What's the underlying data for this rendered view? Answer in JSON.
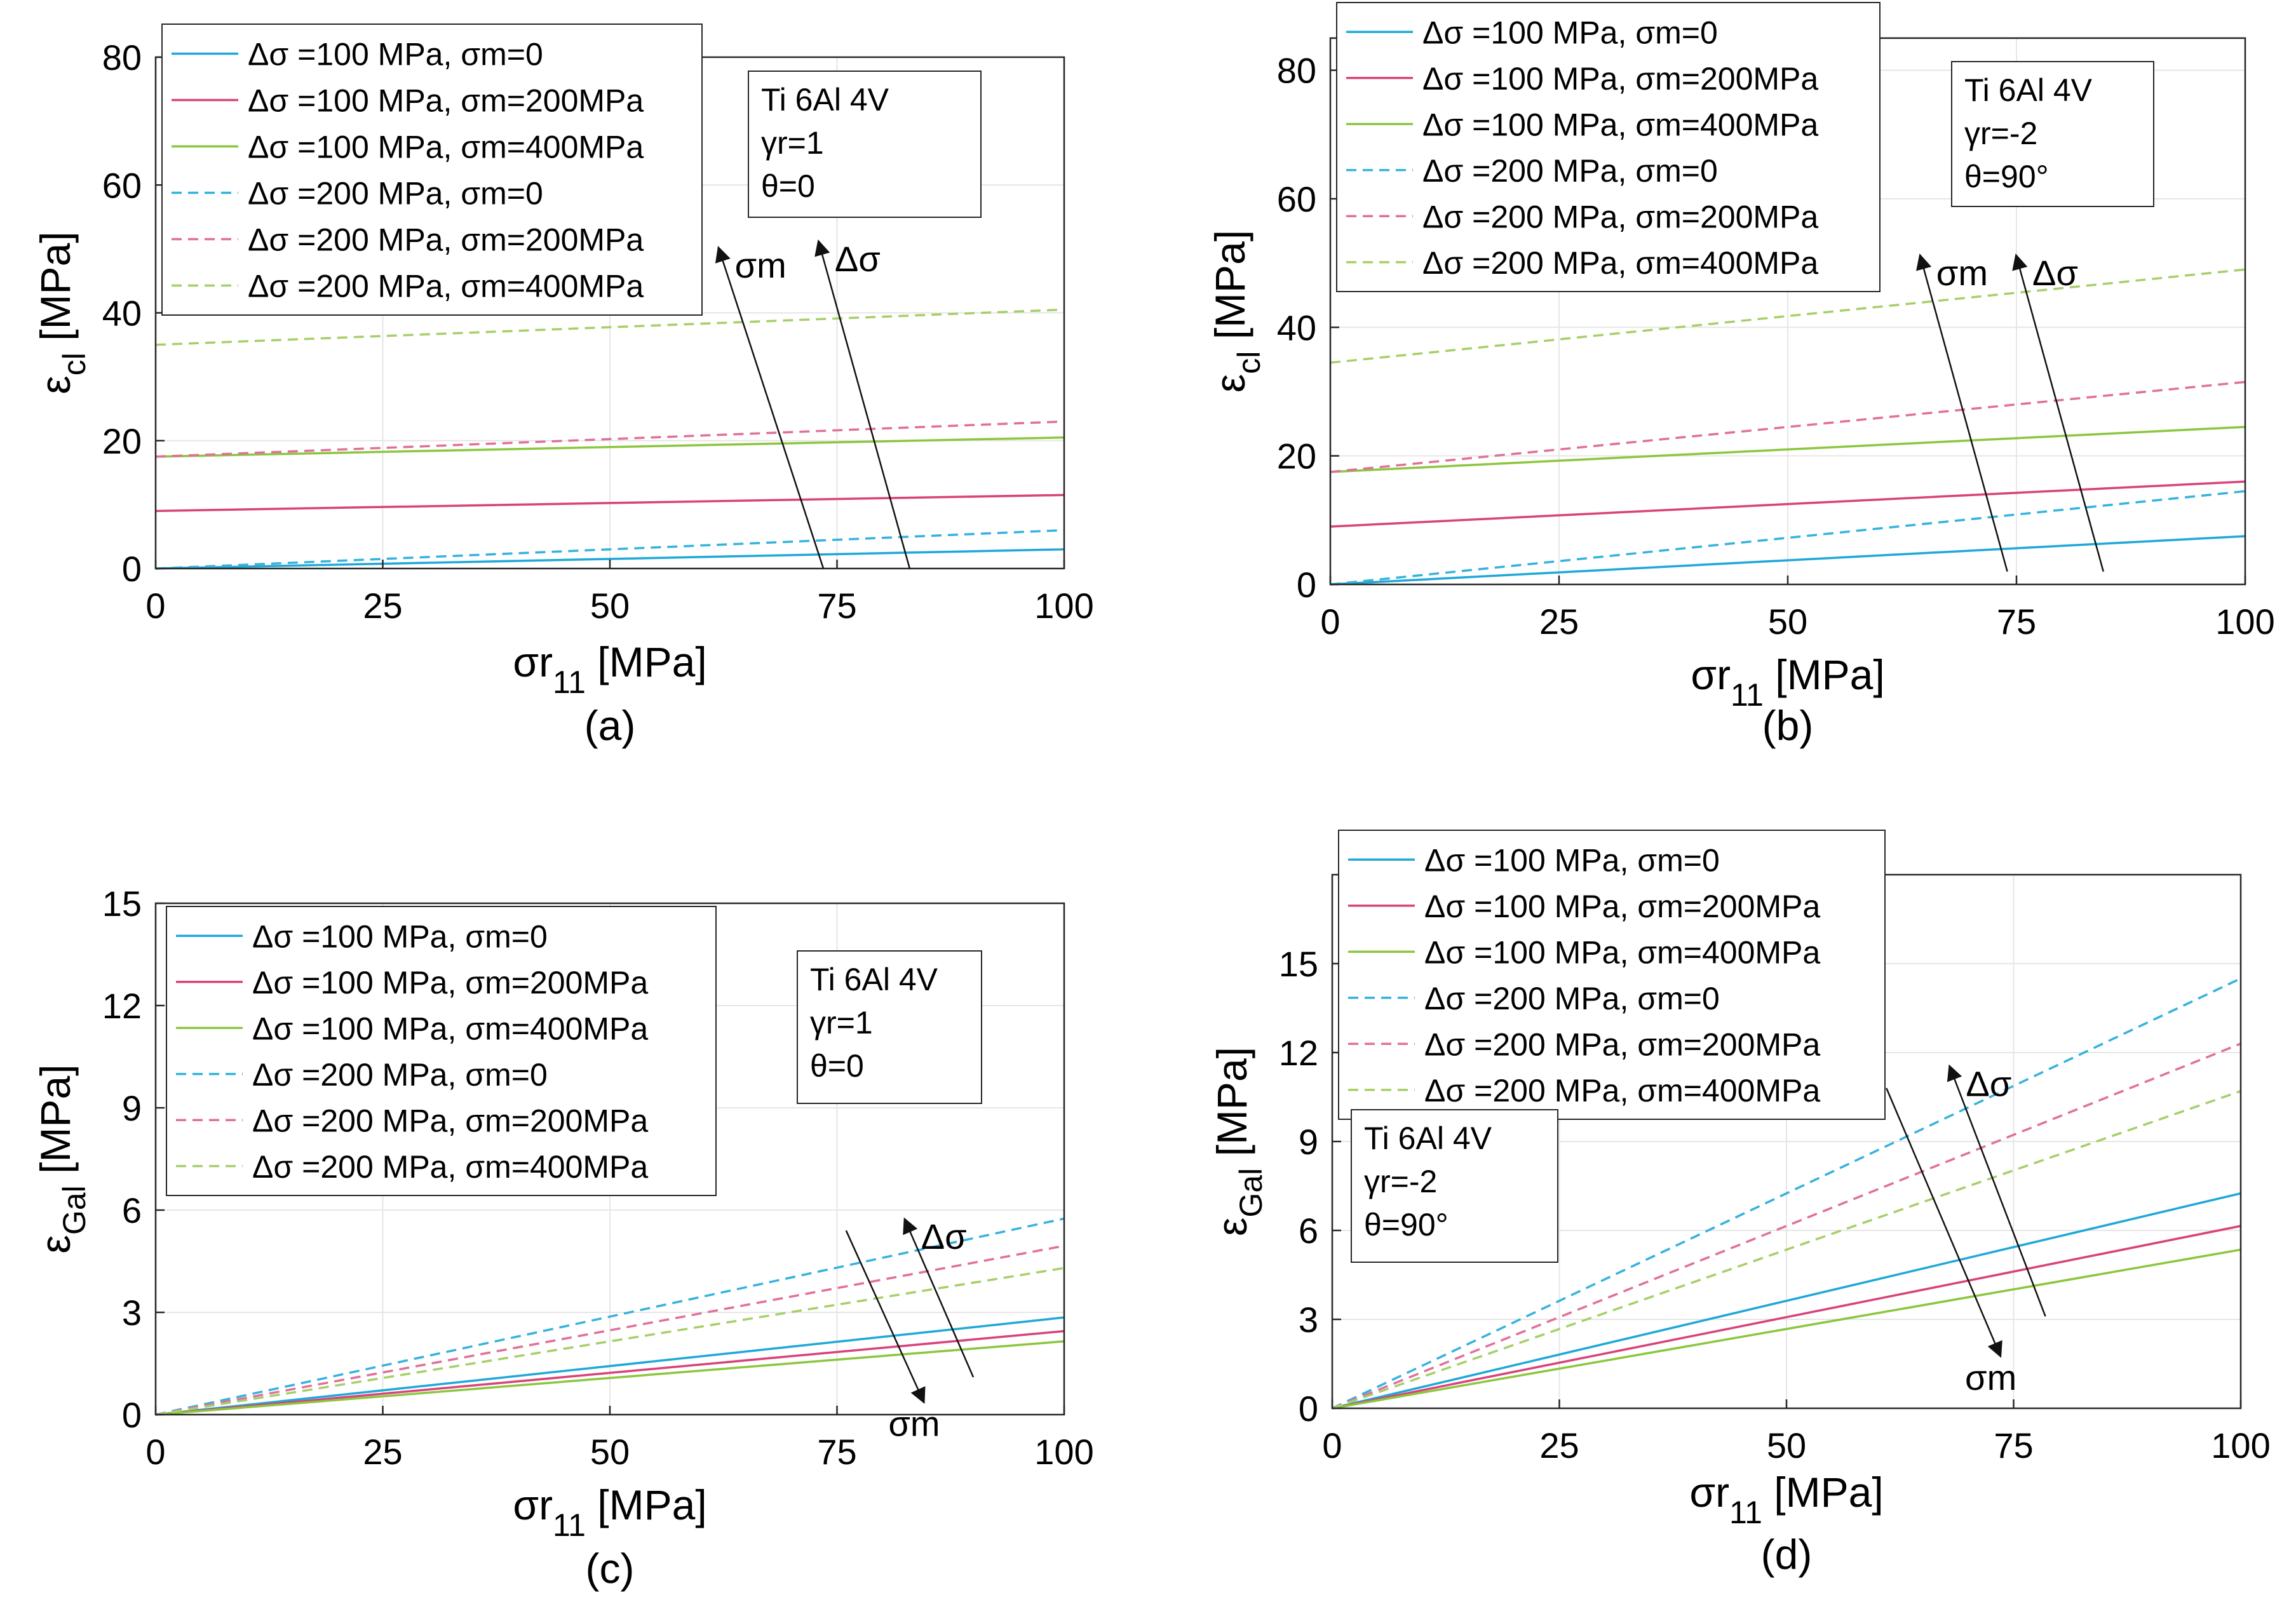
{
  "colors": {
    "blue": "#1fa8d8",
    "pink": "#d8437a",
    "green": "#8cc63e",
    "blue_dash": "#35b2de",
    "pink_dash": "#e0709a",
    "green_dash": "#a6cf6a",
    "axis": "#262626",
    "grid": "#e6e6e6"
  },
  "chart_data": [
    {
      "id": "a",
      "type": "line",
      "panel_label": "(a)",
      "xlabel": "σr11 [MPa]",
      "xlabel_main": "σr",
      "xlabel_sub": "11",
      "xlabel_unit": " [MPa]",
      "ylabel_main": "ε",
      "ylabel_sub": "cl",
      "ylabel_unit": " [MPa]",
      "xlim": [
        0,
        100
      ],
      "ylim": [
        0,
        80
      ],
      "xticks": [
        0,
        25,
        50,
        75,
        100
      ],
      "yticks": [
        0,
        20,
        40,
        60,
        80
      ],
      "x": [
        0,
        100
      ],
      "series": [
        {
          "name": "Δσ =100 MPa, σm=0",
          "color": "#1fa8d8",
          "dash": false,
          "values": [
            0,
            3
          ]
        },
        {
          "name": "Δσ =100 MPa, σm=200MPa",
          "color": "#d8437a",
          "dash": false,
          "values": [
            9,
            11.5
          ]
        },
        {
          "name": "Δσ =100 MPa, σm=400MPa",
          "color": "#8cc63e",
          "dash": false,
          "values": [
            17.5,
            20.5
          ]
        },
        {
          "name": "Δσ =200 MPa, σm=0",
          "color": "#35b2de",
          "dash": true,
          "values": [
            0,
            6
          ]
        },
        {
          "name": "Δσ =200 MPa, σm=200MPa",
          "color": "#e0709a",
          "dash": true,
          "values": [
            17.5,
            23
          ]
        },
        {
          "name": "Δσ =200 MPa, σm=400MPa",
          "color": "#a6cf6a",
          "dash": true,
          "values": [
            35,
            40.5
          ]
        }
      ],
      "legend_position": "top-left",
      "info_lines": [
        "Ti 6Al 4V",
        "γr=1",
        "θ=0"
      ],
      "info_position": "top-center",
      "arrows": [
        {
          "label": "σm",
          "from": [
            73.5,
            0
          ],
          "to": [
            62,
            50
          ]
        },
        {
          "label": "Δσ",
          "from": [
            83,
            0
          ],
          "to": [
            73,
            51
          ]
        }
      ]
    },
    {
      "id": "b",
      "type": "line",
      "panel_label": "(b)",
      "xlabel": "σr11 [MPa]",
      "xlabel_main": "σr",
      "xlabel_sub": "11",
      "xlabel_unit": " [MPa]",
      "ylabel_main": "ε",
      "ylabel_sub": "cl",
      "ylabel_unit": " [MPa]",
      "xlim": [
        0,
        100
      ],
      "ylim": [
        0,
        85
      ],
      "xticks": [
        0,
        25,
        50,
        75,
        100
      ],
      "yticks": [
        0,
        20,
        40,
        60,
        80
      ],
      "x": [
        0,
        100
      ],
      "series": [
        {
          "name": "Δσ =100 MPa, σm=0",
          "color": "#1fa8d8",
          "dash": false,
          "values": [
            0,
            7.5
          ]
        },
        {
          "name": "Δσ =100 MPa, σm=200MPa",
          "color": "#d8437a",
          "dash": false,
          "values": [
            9,
            16
          ]
        },
        {
          "name": "Δσ =100 MPa, σm=400MPa",
          "color": "#8cc63e",
          "dash": false,
          "values": [
            17.5,
            24.5
          ]
        },
        {
          "name": "Δσ =200 MPa, σm=0",
          "color": "#35b2de",
          "dash": true,
          "values": [
            0,
            14.5
          ]
        },
        {
          "name": "Δσ =200 MPa, σm=200MPa",
          "color": "#e0709a",
          "dash": true,
          "values": [
            17.5,
            31.5
          ]
        },
        {
          "name": "Δσ =200 MPa, σm=400MPa",
          "color": "#a6cf6a",
          "dash": true,
          "values": [
            34.5,
            49
          ]
        }
      ],
      "legend_position": "top-left",
      "info_lines": [
        "Ti 6Al 4V",
        "γr=-2",
        "θ=90°"
      ],
      "info_position": "top-right",
      "arrows": [
        {
          "label": "σm",
          "from": [
            74,
            2
          ],
          "to": [
            64.5,
            51
          ]
        },
        {
          "label": "Δσ",
          "from": [
            84.5,
            2
          ],
          "to": [
            75,
            51
          ]
        }
      ]
    },
    {
      "id": "c",
      "type": "line",
      "panel_label": "(c)",
      "xlabel": "σr11 [MPa]",
      "xlabel_main": "σr",
      "xlabel_sub": "11",
      "xlabel_unit": " [MPa]",
      "ylabel_main": "ε",
      "ylabel_sub": "Gal",
      "ylabel_unit": " [MPa]",
      "xlim": [
        0,
        100
      ],
      "ylim": [
        0,
        15
      ],
      "xticks": [
        0,
        25,
        50,
        75,
        100
      ],
      "yticks": [
        0,
        3,
        6,
        9,
        12,
        15
      ],
      "x": [
        0,
        100
      ],
      "series": [
        {
          "name": "Δσ =100 MPa, σm=0",
          "color": "#1fa8d8",
          "dash": false,
          "values": [
            0,
            2.85
          ]
        },
        {
          "name": "Δσ =100 MPa, σm=200MPa",
          "color": "#d8437a",
          "dash": false,
          "values": [
            0,
            2.45
          ]
        },
        {
          "name": "Δσ =100 MPa, σm=400MPa",
          "color": "#8cc63e",
          "dash": false,
          "values": [
            0,
            2.15
          ]
        },
        {
          "name": "Δσ =200 MPa, σm=0",
          "color": "#35b2de",
          "dash": true,
          "values": [
            0,
            5.75
          ]
        },
        {
          "name": "Δσ =200 MPa, σm=200MPa",
          "color": "#e0709a",
          "dash": true,
          "values": [
            0,
            4.95
          ]
        },
        {
          "name": "Δσ =200 MPa, σm=400MPa",
          "color": "#a6cf6a",
          "dash": true,
          "values": [
            0,
            4.3
          ]
        }
      ],
      "legend_position": "top-left",
      "info_lines": [
        "Ti 6Al 4V",
        "γr=1",
        "θ=0"
      ],
      "info_position": "top-right",
      "arrows": [
        {
          "label": "Δσ",
          "from": [
            90,
            1.1
          ],
          "to": [
            82.5,
            5.7
          ]
        },
        {
          "label": "σm",
          "from": [
            76,
            5.4
          ],
          "to": [
            84.5,
            0.4
          ]
        }
      ]
    },
    {
      "id": "d",
      "type": "line",
      "panel_label": "(d)",
      "xlabel": "σr11 [MPa]",
      "xlabel_main": "σr",
      "xlabel_sub": "11",
      "xlabel_unit": " [MPa]",
      "ylabel_main": "ε",
      "ylabel_sub": "Gal",
      "ylabel_unit": " [MPa]",
      "xlim": [
        0,
        100
      ],
      "ylim": [
        0,
        18
      ],
      "xticks": [
        0,
        25,
        50,
        75,
        100
      ],
      "yticks": [
        0,
        3,
        6,
        9,
        12,
        15
      ],
      "x": [
        0,
        100
      ],
      "series": [
        {
          "name": "Δσ =100 MPa, σm=0",
          "color": "#1fa8d8",
          "dash": false,
          "values": [
            0,
            7.25
          ]
        },
        {
          "name": "Δσ =100 MPa, σm=200MPa",
          "color": "#d8437a",
          "dash": false,
          "values": [
            0,
            6.15
          ]
        },
        {
          "name": "Δσ =100 MPa, σm=400MPa",
          "color": "#8cc63e",
          "dash": false,
          "values": [
            0,
            5.35
          ]
        },
        {
          "name": "Δσ =200 MPa, σm=0",
          "color": "#35b2de",
          "dash": true,
          "values": [
            0,
            14.5
          ]
        },
        {
          "name": "Δσ =200 MPa, σm=200MPa",
          "color": "#e0709a",
          "dash": true,
          "values": [
            0,
            12.3
          ]
        },
        {
          "name": "Δσ =200 MPa, σm=400MPa",
          "color": "#a6cf6a",
          "dash": true,
          "values": [
            0,
            10.7
          ]
        }
      ],
      "legend_position": "top-left",
      "info_lines": [
        "Ti 6Al 4V",
        "γr=-2",
        "θ=90°"
      ],
      "info_position": "middle-left",
      "arrows": [
        {
          "label": "Δσ",
          "from": [
            78.5,
            3.1
          ],
          "to": [
            68,
            11.5
          ]
        },
        {
          "label": "σm",
          "from": [
            61,
            10.8
          ],
          "to": [
            73.5,
            1.8
          ]
        }
      ]
    }
  ]
}
